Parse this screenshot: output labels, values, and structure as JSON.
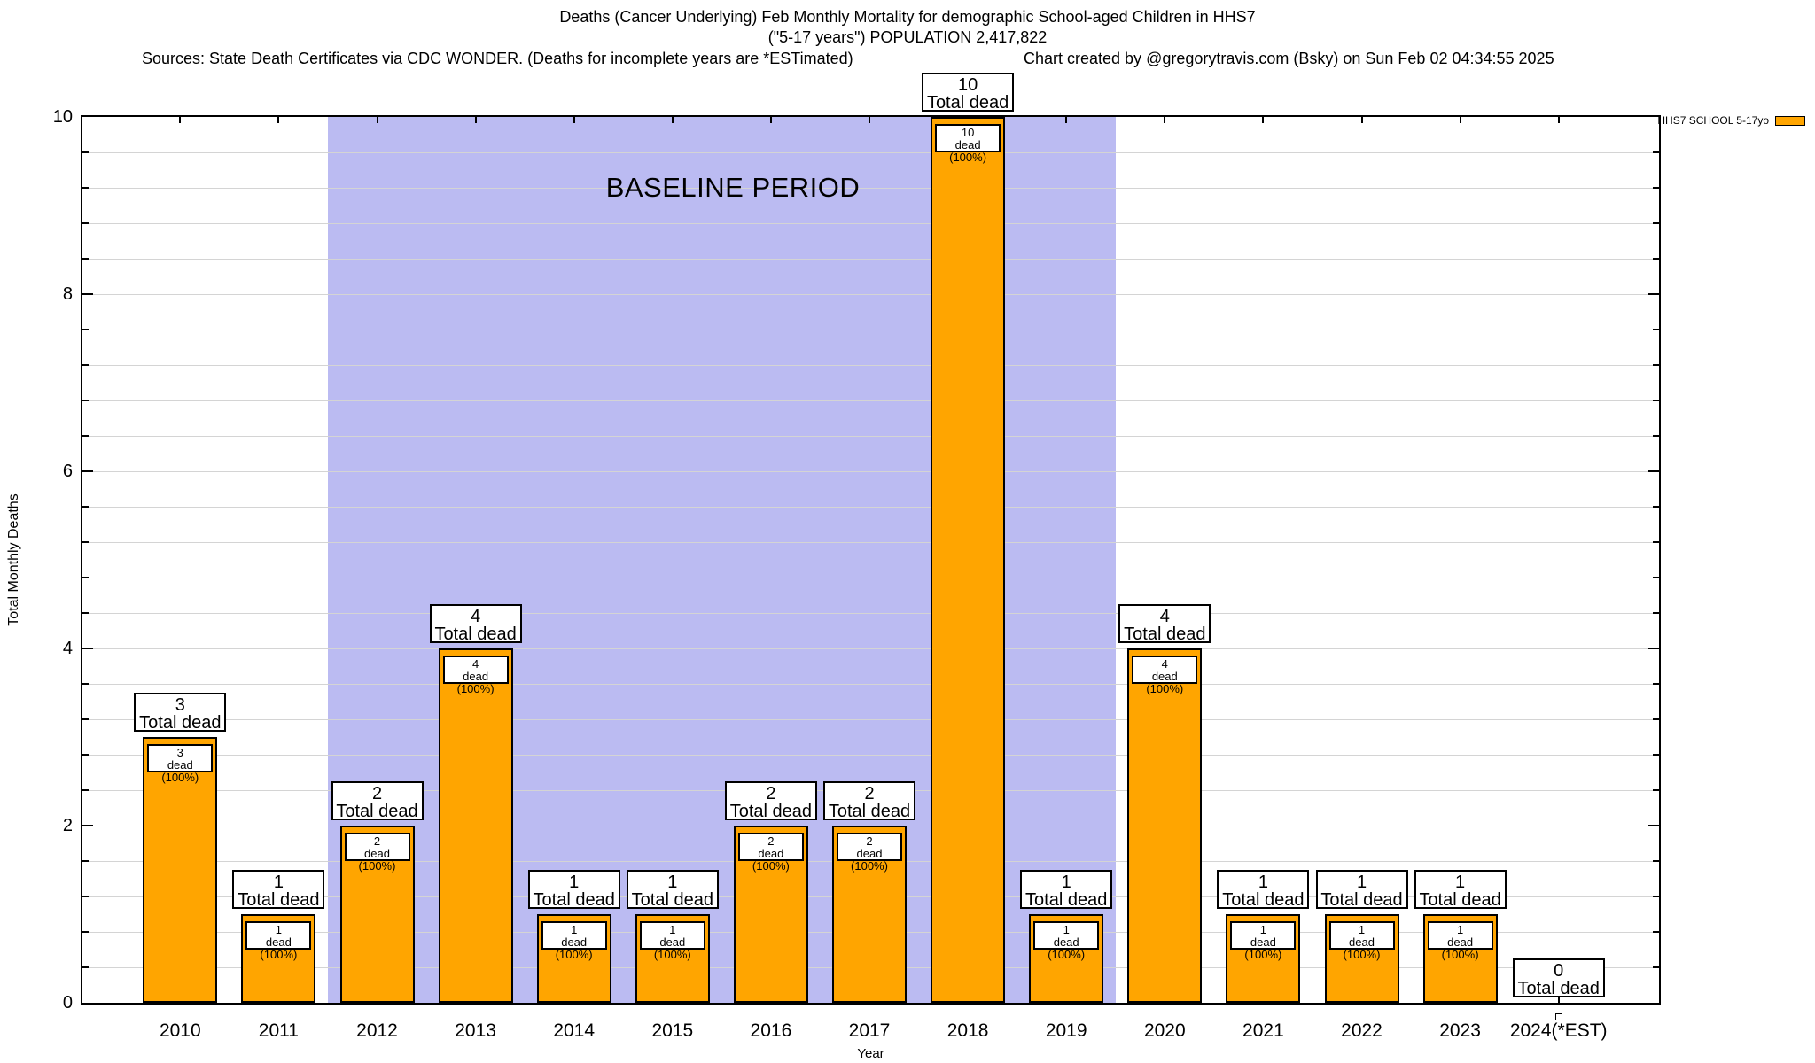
{
  "header": {
    "title_line1": "Deaths (Cancer Underlying) Feb Monthly Mortality for demographic School-aged Children in HHS7",
    "title_line2": "(\"5-17 years\") POPULATION 2,417,822",
    "sources": "Sources: State Death Certificates via CDC WONDER. (Deaths for incomplete years are *ESTimated)",
    "credit": "Chart created by @gregorytravis.com (Bsky) on Sun Feb 02 04:34:55 2025"
  },
  "legend": {
    "label": "HHS7 SCHOOL 5-17yo",
    "swatch_color": "#ffa500",
    "position": "top-right"
  },
  "chart_data": {
    "type": "bar",
    "title": "Deaths (Cancer Underlying) Feb Monthly Mortality for demographic School-aged Children in HHS7 (\"5-17 years\") POPULATION 2,417,822",
    "categories": [
      "2010",
      "2011",
      "2012",
      "2013",
      "2014",
      "2015",
      "2016",
      "2017",
      "2018",
      "2019",
      "2020",
      "2021",
      "2022",
      "2023",
      "2024(*EST)"
    ],
    "series": [
      {
        "name": "HHS7 SCHOOL 5-17yo",
        "values": [
          3,
          1,
          2,
          4,
          1,
          1,
          2,
          2,
          10,
          1,
          4,
          1,
          1,
          1,
          0
        ]
      }
    ],
    "bar_top_label_line2": "Total dead",
    "bar_inner_label_line2": "dead (100%)",
    "xlabel": "Year",
    "ylabel": "Total Monthly Deaths",
    "ylim": [
      0,
      10
    ],
    "ytick_major": [
      0,
      2,
      4,
      6,
      8,
      10
    ],
    "ytick_minor_step": 0.4,
    "grid": true,
    "bar_color": "#ffa500",
    "annotation_band": {
      "label": "BASELINE PERIOD",
      "from_category": "2012",
      "to_category": "2019",
      "color": "#bbbbf2"
    },
    "zero_marker_categories": [
      "2024(*EST)"
    ]
  }
}
